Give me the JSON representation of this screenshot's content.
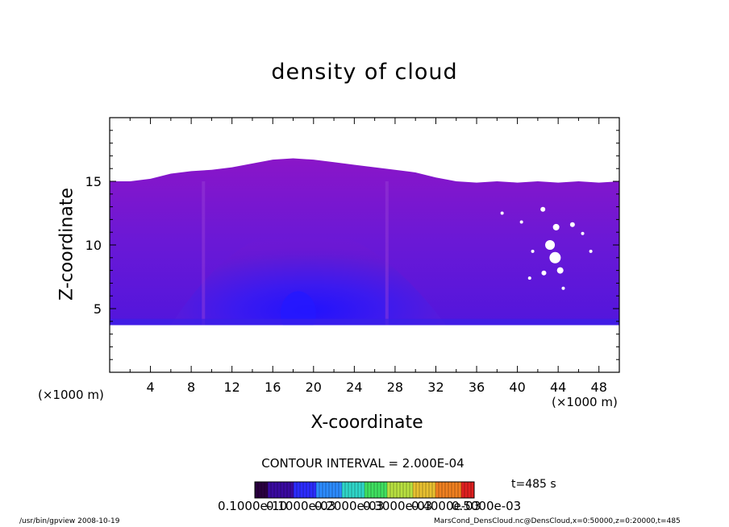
{
  "chart_data": {
    "type": "heatmap",
    "title": "density of cloud",
    "xlabel": "X-coordinate",
    "ylabel": "Z-coordinate",
    "x_unit_left": "(×1000 m)",
    "x_unit_right": "(×1000 m)",
    "x_ticks": [
      "4",
      "8",
      "12",
      "16",
      "20",
      "24",
      "28",
      "32",
      "36",
      "40",
      "44",
      "48"
    ],
    "y_ticks": [
      "5",
      "10",
      "15"
    ],
    "xlim": [
      0,
      50
    ],
    "ylim": [
      0,
      20
    ],
    "cloud_base_z": 3.7,
    "cloud_top_profile": {
      "x": [
        0,
        2,
        4,
        6,
        8,
        10,
        12,
        14,
        16,
        18,
        20,
        22,
        24,
        26,
        28,
        30,
        32,
        34,
        36,
        38,
        40,
        42,
        44,
        46,
        48,
        50
      ],
      "z": [
        15.0,
        15.0,
        15.2,
        15.6,
        15.8,
        15.9,
        16.1,
        16.4,
        16.7,
        16.8,
        16.7,
        16.5,
        16.3,
        16.1,
        15.9,
        15.7,
        15.3,
        15.0,
        14.9,
        15.0,
        14.9,
        15.0,
        14.9,
        15.0,
        14.9,
        15.0
      ]
    },
    "contour_interval_label": "CONTOUR INTERVAL = 2.000E-04",
    "time_label": "t=485 s",
    "colorbar_labels": [
      "0.1000e-10",
      "0.1000e-03",
      "0.2000e-03",
      "0.3000e-03",
      "0.4000e-03",
      "0.5000e-03"
    ],
    "colorbar_colors": [
      "#2a0040",
      "#3a0aa0",
      "#2c2cff",
      "#2d8cff",
      "#2fd6c8",
      "#3fe060",
      "#b8e040",
      "#e8c030",
      "#f08020",
      "#e02020"
    ],
    "colors": {
      "cloud_edge": "#8a14c8",
      "cloud_core": "#2418ff",
      "cloud_mid": "#5c1ae0"
    }
  },
  "footer": {
    "left": "/usr/bin/gpview   2008-10-19",
    "right": "MarsCond_DensCloud.nc@DensCloud,x=0:50000,z=0:20000,t=485"
  }
}
